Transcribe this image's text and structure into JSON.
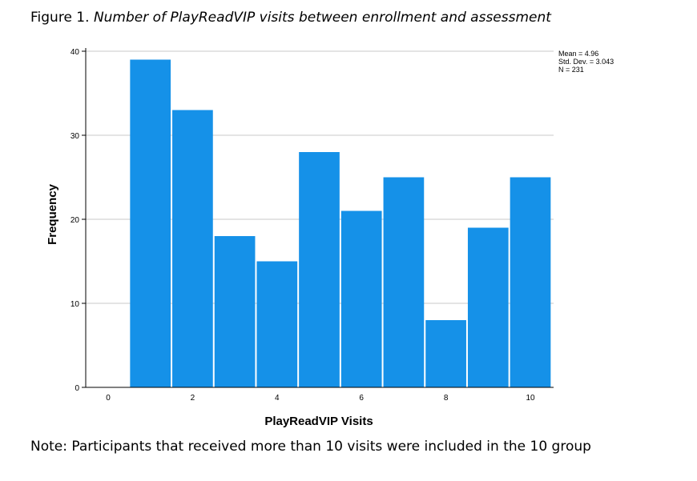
{
  "caption": {
    "prefix": "Figure 1. ",
    "title": "Number of PlayReadVIP visits between enrollment and assessment"
  },
  "note": "Note: Participants that received more than 10 visits were included in the 10 group",
  "stats": {
    "mean": "Mean = 4.96",
    "std": "Std. Dev. = 3.043",
    "n": "N = 231"
  },
  "colors": {
    "bar": "#1591e8",
    "grid": "#c8c8c8",
    "axis": "#000000"
  },
  "chart_data": {
    "type": "bar",
    "title": "Number of PlayReadVIP visits between enrollment and assessment",
    "xlabel": "PlayReadVIP Visits",
    "ylabel": "Frequency",
    "categories": [
      "0",
      "1",
      "2",
      "3",
      "4",
      "5",
      "6",
      "7",
      "8",
      "9",
      "10"
    ],
    "values": [
      0,
      39,
      33,
      18,
      15,
      28,
      21,
      25,
      8,
      19,
      25
    ],
    "ylim": [
      0,
      40
    ],
    "yticks": [
      0,
      10,
      20,
      30,
      40
    ],
    "xticks": [
      0,
      2,
      4,
      6,
      8,
      10
    ],
    "grid": true,
    "legend": "none"
  }
}
